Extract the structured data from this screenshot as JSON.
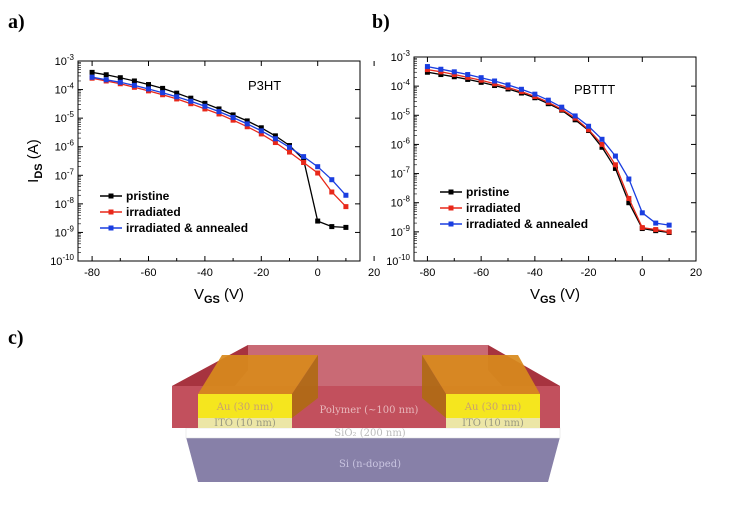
{
  "panel_labels": [
    "a)",
    "b)",
    "c)"
  ],
  "chart_data": [
    {
      "type": "line",
      "panel": "a)",
      "title": "P3HT",
      "xlabel_main": "V",
      "xlabel_sub": "GS",
      "xlabel_unit": " (V)",
      "ylabel_main": "I",
      "ylabel_sub": "DS",
      "ylabel_unit": " (A)",
      "y_scale": "log",
      "xlim": [
        -85,
        15
      ],
      "ylim_exp": [
        -10,
        -3
      ],
      "x_ticks": [
        -80,
        -60,
        -40,
        -20,
        0,
        20
      ],
      "y_ticks_exp": [
        -10,
        -9,
        -8,
        -7,
        -6,
        -5,
        -4,
        -3
      ],
      "legend_position": "lower-left",
      "series": [
        {
          "name": "pristine",
          "color": "#000000",
          "x": [
            -80,
            -75,
            -70,
            -65,
            -60,
            -55,
            -50,
            -45,
            -40,
            -35,
            -30,
            -25,
            -20,
            -15,
            -10,
            -5,
            0,
            5,
            10
          ],
          "y": [
            0.0004,
            0.00033,
            0.00026,
            0.0002,
            0.00015,
            0.00011,
            7.5e-05,
            5e-05,
            3.3e-05,
            2.1e-05,
            1.3e-05,
            8e-06,
            4.6e-06,
            2.4e-06,
            1.1e-06,
            3.5e-07,
            2.5e-09,
            1.6e-09,
            1.5e-09
          ]
        },
        {
          "name": "irradiated",
          "color": "#e8281a",
          "x": [
            -80,
            -75,
            -70,
            -65,
            -60,
            -55,
            -50,
            -45,
            -40,
            -35,
            -30,
            -25,
            -20,
            -15,
            -10,
            -5,
            0,
            5,
            10
          ],
          "y": [
            0.00025,
            0.0002,
            0.00016,
            0.00012,
            9e-05,
            6.6e-05,
            4.7e-05,
            3.2e-05,
            2.1e-05,
            1.4e-05,
            8.5e-06,
            5e-06,
            2.8e-06,
            1.4e-06,
            6.5e-07,
            2.8e-07,
            1.2e-07,
            2.6e-08,
            8e-09
          ]
        },
        {
          "name": "irradiated & annealed",
          "color": "#1a3ee0",
          "x": [
            -80,
            -75,
            -70,
            -65,
            -60,
            -55,
            -50,
            -45,
            -40,
            -35,
            -30,
            -25,
            -20,
            -15,
            -10,
            -5,
            0,
            5,
            10
          ],
          "y": [
            0.00027,
            0.00022,
            0.00018,
            0.00014,
            0.000105,
            7.8e-05,
            5.6e-05,
            3.9e-05,
            2.6e-05,
            1.7e-05,
            1.05e-05,
            6.3e-06,
            3.6e-06,
            1.9e-06,
            9.5e-07,
            4.5e-07,
            2e-07,
            7e-08,
            2e-08
          ]
        }
      ]
    },
    {
      "type": "line",
      "panel": "b)",
      "title": "PBTTT",
      "xlabel_main": "V",
      "xlabel_sub": "GS",
      "xlabel_unit": " (V)",
      "y_scale": "log",
      "xlim": [
        -85,
        20
      ],
      "ylim_exp": [
        -10,
        -3
      ],
      "x_ticks": [
        -80,
        -60,
        -40,
        -20,
        0,
        20
      ],
      "y_ticks_exp": [
        -10,
        -9,
        -8,
        -7,
        -6,
        -5,
        -4,
        -3
      ],
      "legend_position": "lower-left",
      "series": [
        {
          "name": "pristine",
          "color": "#000000",
          "x": [
            -80,
            -75,
            -70,
            -65,
            -60,
            -55,
            -50,
            -45,
            -40,
            -35,
            -30,
            -25,
            -20,
            -15,
            -10,
            -5,
            0,
            5,
            10
          ],
          "y": [
            0.0003,
            0.00025,
            0.00021,
            0.00017,
            0.000135,
            0.000105,
            8e-05,
            5.8e-05,
            4e-05,
            2.5e-05,
            1.5e-05,
            7e-06,
            3e-06,
            8e-07,
            1.5e-07,
            1e-08,
            1.3e-09,
            1.1e-09,
            9.5e-10
          ]
        },
        {
          "name": "irradiated",
          "color": "#e8281a",
          "x": [
            -80,
            -75,
            -70,
            -65,
            -60,
            -55,
            -50,
            -45,
            -40,
            -35,
            -30,
            -25,
            -20,
            -15,
            -10,
            -5,
            0,
            5,
            10
          ],
          "y": [
            0.00037,
            0.00031,
            0.00025,
            0.0002,
            0.00016,
            0.00012,
            9e-05,
            6.5e-05,
            4.4e-05,
            2.8e-05,
            1.6e-05,
            8e-06,
            3.2e-06,
            1e-06,
            2e-07,
            1.4e-08,
            1.4e-09,
            1.2e-09,
            1e-09
          ]
        },
        {
          "name": "irradiated & annealed",
          "color": "#1a3ee0",
          "x": [
            -80,
            -75,
            -70,
            -65,
            -60,
            -55,
            -50,
            -45,
            -40,
            -35,
            -30,
            -25,
            -20,
            -15,
            -10,
            -5,
            0,
            5,
            10
          ],
          "y": [
            0.00047,
            0.00038,
            0.00031,
            0.00025,
            0.000195,
            0.00015,
            0.00011,
            7.8e-05,
            5.3e-05,
            3.3e-05,
            1.9e-05,
            9.5e-06,
            4.2e-06,
            1.5e-06,
            4e-07,
            6.5e-08,
            4.5e-09,
            2e-09,
            1.7e-09
          ]
        }
      ]
    }
  ],
  "device_diagram": {
    "polymer_label": "Polymer (~100 nm)",
    "gold_left_label": "Au (30 nm)",
    "gold_right_label": "Au (30 nm)",
    "ito_left_label": "ITO (10 nm)",
    "ito_right_label": "ITO (10 nm)",
    "sio2_label": "SiO₂ (200 nm)",
    "si_label": "Si (n-doped)",
    "colors": {
      "polymer": "#b4323f",
      "gold": "#f5e61e",
      "gold_top": "#d88a1c",
      "ito": "#ece6a6",
      "sio2": "#ffffff",
      "si": "#8780a8"
    }
  }
}
